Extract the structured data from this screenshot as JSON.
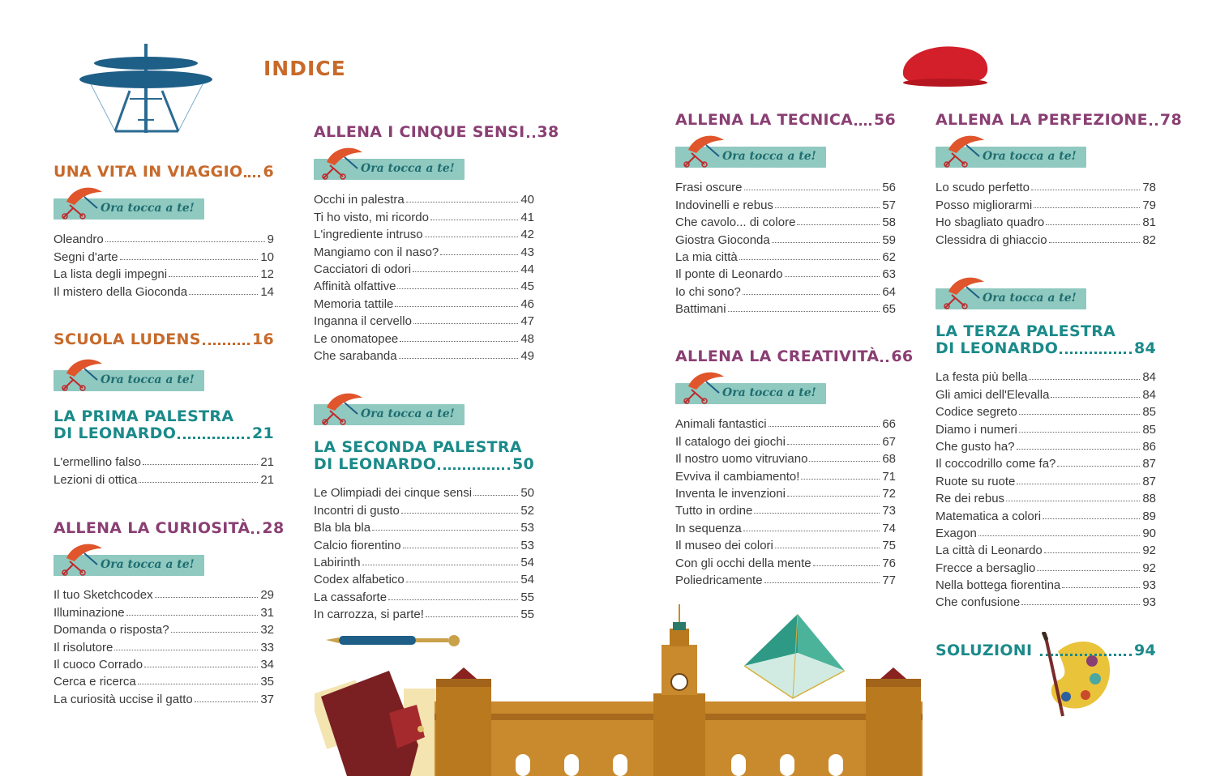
{
  "title": "INDICE",
  "ora_label": "Ora tocca a te!",
  "col1": {
    "s1": {
      "title": "UNA VITA IN VIAGGIO",
      "page": "6"
    },
    "s1_items": [
      {
        "t": "Oleandro",
        "p": "9"
      },
      {
        "t": "Segni d'arte",
        "p": "10"
      },
      {
        "t": "La lista degli impegni",
        "p": "12"
      },
      {
        "t": "Il mistero della Gioconda",
        "p": "14"
      }
    ],
    "s2": {
      "title": "SCUOLA LUDENS",
      "page": "16"
    },
    "s3": {
      "line1": "LA PRIMA PALESTRA",
      "line2": "DI LEONARDO",
      "page": "21"
    },
    "s3_items": [
      {
        "t": "L'ermellino falso",
        "p": "21"
      },
      {
        "t": "Lezioni di ottica",
        "p": "21"
      }
    ],
    "s4": {
      "title": "ALLENA LA CURIOSITÀ",
      "page": "28"
    },
    "s4_items": [
      {
        "t": "Il tuo Sketchcodex",
        "p": "29"
      },
      {
        "t": "Illuminazione",
        "p": "31"
      },
      {
        "t": "Domanda o risposta?",
        "p": "32"
      },
      {
        "t": "Il risolutore",
        "p": "33"
      },
      {
        "t": "Il cuoco Corrado",
        "p": "34"
      },
      {
        "t": "Cerca e ricerca",
        "p": "35"
      },
      {
        "t": "La curiosità uccise il gatto",
        "p": "37"
      }
    ]
  },
  "col2": {
    "s1": {
      "title": "ALLENA I CINQUE SENSI",
      "page": "38"
    },
    "s1_items": [
      {
        "t": "Occhi in palestra",
        "p": "40"
      },
      {
        "t": "Ti ho visto, mi ricordo",
        "p": "41"
      },
      {
        "t": "L'ingrediente intruso",
        "p": "42"
      },
      {
        "t": "Mangiamo con il naso?",
        "p": "43"
      },
      {
        "t": "Cacciatori di odori",
        "p": "44"
      },
      {
        "t": "Affinità olfattive",
        "p": "45"
      },
      {
        "t": "Memoria tattile",
        "p": "46"
      },
      {
        "t": "Inganna il cervello",
        "p": "47"
      },
      {
        "t": "Le onomatopee",
        "p": "48"
      },
      {
        "t": "Che sarabanda",
        "p": "49"
      }
    ],
    "s2": {
      "line1": "LA SECONDA PALESTRA",
      "line2": "DI LEONARDO",
      "page": "50"
    },
    "s2_items": [
      {
        "t": "Le Olimpiadi dei cinque sensi",
        "p": "50"
      },
      {
        "t": "Incontri di gusto",
        "p": "52"
      },
      {
        "t": "Bla bla bla",
        "p": "53"
      },
      {
        "t": "Calcio fiorentino",
        "p": "53"
      },
      {
        "t": "Labirinth",
        "p": "54"
      },
      {
        "t": "Codex alfabetico",
        "p": "54"
      },
      {
        "t": "La cassaforte",
        "p": "55"
      },
      {
        "t": "In carrozza, si parte!",
        "p": "55"
      }
    ]
  },
  "col3": {
    "s1": {
      "title": "ALLENA LA TECNICA",
      "page": "56"
    },
    "s1_items": [
      {
        "t": "Frasi oscure",
        "p": "56"
      },
      {
        "t": "Indovinelli e rebus",
        "p": "57"
      },
      {
        "t": "Che cavolo... di colore",
        "p": "58"
      },
      {
        "t": "Giostra Gioconda",
        "p": "59"
      },
      {
        "t": "La mia città",
        "p": "62"
      },
      {
        "t": "Il ponte di Leonardo",
        "p": "63"
      },
      {
        "t": "Io chi sono?",
        "p": "64"
      },
      {
        "t": "Battimani",
        "p": "65"
      }
    ],
    "s2": {
      "title": "ALLENA LA CREATIVITÀ",
      "page": "66"
    },
    "s2_items": [
      {
        "t": "Animali fantastici",
        "p": "66"
      },
      {
        "t": "Il catalogo dei giochi",
        "p": "67"
      },
      {
        "t": "Il nostro uomo vitruviano",
        "p": "68"
      },
      {
        "t": "Evviva il cambiamento!",
        "p": "71"
      },
      {
        "t": "Inventa le invenzioni",
        "p": "72"
      },
      {
        "t": "Tutto in ordine",
        "p": "73"
      },
      {
        "t": "In sequenza",
        "p": "74"
      },
      {
        "t": "Il museo dei colori",
        "p": "75"
      },
      {
        "t": "Con gli occhi della mente",
        "p": "76"
      },
      {
        "t": "Poliedricamente",
        "p": "77"
      }
    ]
  },
  "col4": {
    "s1": {
      "title": "ALLENA LA PERFEZIONE",
      "page": "78"
    },
    "s1_items": [
      {
        "t": "Lo scudo perfetto",
        "p": "78"
      },
      {
        "t": "Posso migliorarmi",
        "p": "79"
      },
      {
        "t": "Ho sbagliato quadro",
        "p": "81"
      },
      {
        "t": "Clessidra di ghiaccio",
        "p": "82"
      }
    ],
    "s2": {
      "line1": "LA TERZA PALESTRA",
      "line2": "DI LEONARDO",
      "page": "84"
    },
    "s2_items": [
      {
        "t": "La festa più bella",
        "p": "84"
      },
      {
        "t": "Gli amici dell'Elevalla",
        "p": "84"
      },
      {
        "t": "Codice segreto",
        "p": "85"
      },
      {
        "t": "Diamo i numeri",
        "p": "85"
      },
      {
        "t": "Che gusto ha?",
        "p": "86"
      },
      {
        "t": "Il coccodrillo come fa?",
        "p": "87"
      },
      {
        "t": "Ruote su ruote",
        "p": "87"
      },
      {
        "t": "Re dei rebus",
        "p": "88"
      },
      {
        "t": "Matematica a colori",
        "p": "89"
      },
      {
        "t": "Exagon",
        "p": "90"
      },
      {
        "t": "La città di Leonardo",
        "p": "92"
      },
      {
        "t": "Frecce a bersaglio",
        "p": "92"
      },
      {
        "t": "Nella bottega fiorentina",
        "p": "93"
      },
      {
        "t": "Che confusione",
        "p": "93"
      }
    ],
    "s3": {
      "title": "SOLUZIONI",
      "page": "94"
    }
  },
  "colors": {
    "orange": "#c76a2b",
    "purple": "#8a3f73",
    "teal": "#1b8a8a",
    "banner": "#8fc9c0"
  },
  "icons": [
    "flying-machine-icon",
    "red-beret-icon",
    "pen-icon",
    "notebook-icon",
    "castle-icon",
    "pyramid-icon",
    "palette-icon",
    "ornithopter-icon"
  ]
}
